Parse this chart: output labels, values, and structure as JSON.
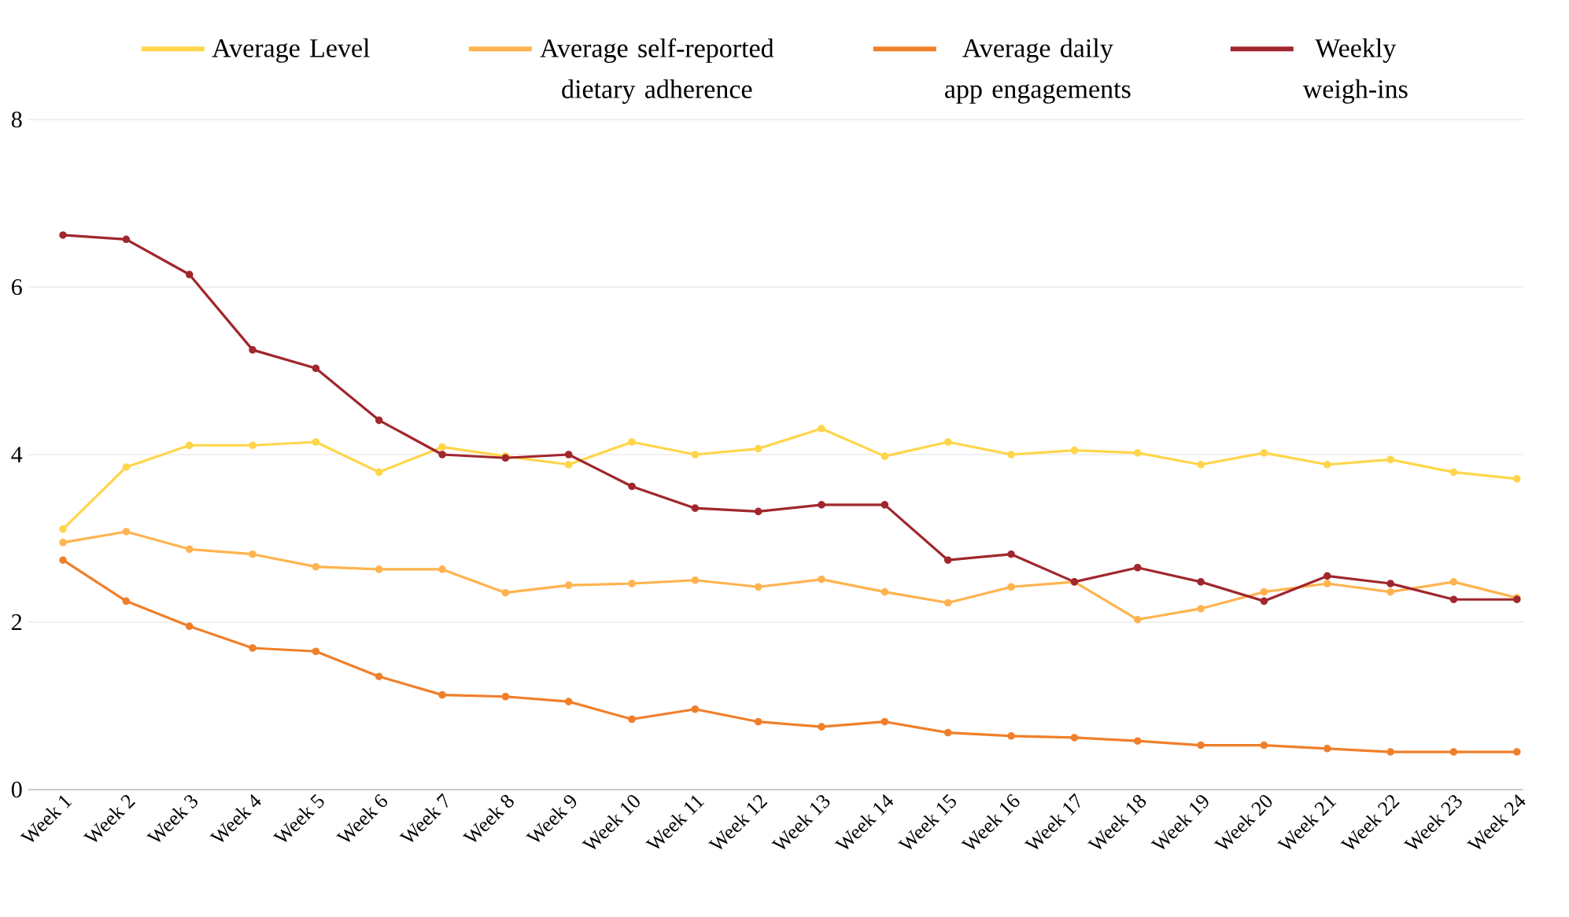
{
  "chart_data": {
    "type": "line",
    "categories": [
      "Week 1",
      "Week 2",
      "Week 3",
      "Week 4",
      "Week 5",
      "Week 6",
      "Week 7",
      "Week 8",
      "Week 9",
      "Week 10",
      "Week 11",
      "Week 12",
      "Week 13",
      "Week 14",
      "Week 15",
      "Week 16",
      "Week 17",
      "Week 18",
      "Week 19",
      "Week 20",
      "Week 21",
      "Week 22",
      "Week 23",
      "Week 24"
    ],
    "series": [
      {
        "name": "Average Level",
        "color": "#ffd54a",
        "values": [
          3.11,
          3.85,
          4.11,
          4.11,
          4.15,
          3.79,
          4.09,
          3.98,
          3.88,
          4.15,
          4.0,
          4.07,
          4.31,
          3.98,
          4.15,
          4.0,
          4.05,
          4.02,
          3.88,
          4.02,
          3.88,
          3.94,
          3.79,
          3.71
        ]
      },
      {
        "name": "Average self-reported dietary adherence",
        "color": "#ffb34f",
        "values": [
          2.95,
          3.08,
          2.87,
          2.81,
          2.66,
          2.63,
          2.63,
          2.35,
          2.44,
          2.46,
          2.5,
          2.42,
          2.51,
          2.36,
          2.23,
          2.42,
          2.48,
          2.03,
          2.16,
          2.36,
          2.46,
          2.36,
          2.48,
          2.29
        ]
      },
      {
        "name": "Average daily app engagements",
        "color": "#f07f2a",
        "values": [
          2.74,
          2.25,
          1.95,
          1.69,
          1.65,
          1.35,
          1.13,
          1.11,
          1.05,
          0.84,
          0.96,
          0.81,
          0.75,
          0.81,
          0.68,
          0.64,
          0.62,
          0.58,
          0.53,
          0.53,
          0.49,
          0.45,
          0.45,
          0.45
        ]
      },
      {
        "name": "Weekly weigh-ins",
        "color": "#a0272d",
        "values": [
          6.62,
          6.57,
          6.15,
          5.25,
          5.03,
          4.41,
          4.0,
          3.96,
          4.0,
          3.62,
          3.36,
          3.32,
          3.4,
          3.4,
          2.74,
          2.81,
          2.48,
          2.65,
          2.48,
          2.25,
          2.55,
          2.46,
          2.27,
          2.27
        ]
      }
    ],
    "ylim": [
      0,
      8
    ],
    "yticks": [
      0,
      2,
      4,
      6,
      8
    ],
    "grid": "y",
    "legend": "top",
    "marker": "circle",
    "line_style": "solid"
  }
}
